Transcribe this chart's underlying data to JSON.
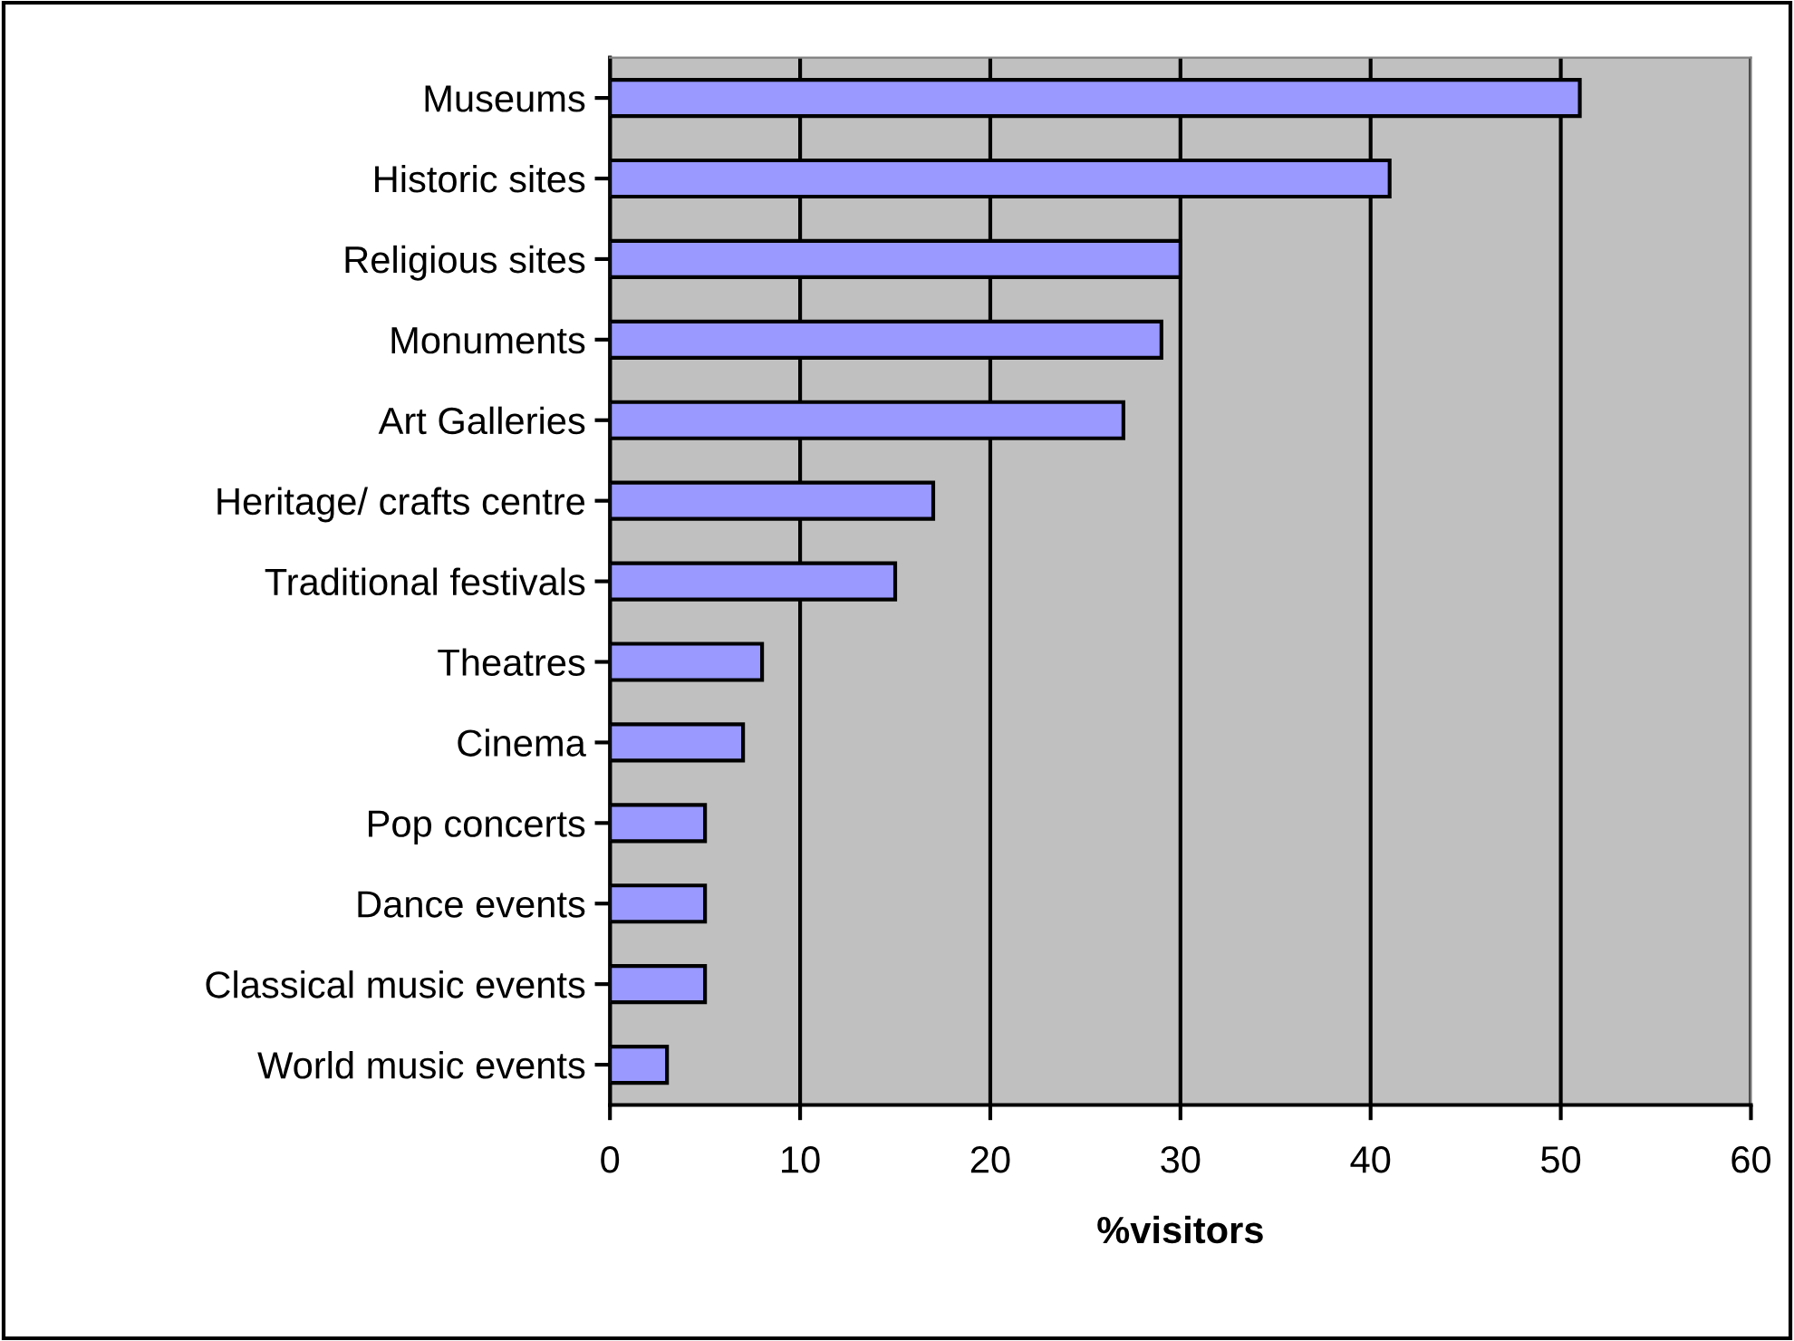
{
  "chart_data": {
    "type": "bar",
    "orientation": "horizontal",
    "xlabel": "%visitors",
    "categories": [
      "Museums",
      "Historic sites",
      "Religious sites",
      "Monuments",
      "Art Galleries",
      "Heritage/ crafts centre",
      "Traditional festivals",
      "Theatres",
      "Cinema",
      "Pop concerts",
      "Dance events",
      "Classical music events",
      "World music events"
    ],
    "values": [
      51,
      41,
      30,
      29,
      27,
      17,
      15,
      8,
      7,
      5,
      5,
      5,
      3
    ],
    "color": "#9999ff",
    "xlim": [
      0,
      60
    ],
    "xticks": [
      0,
      10,
      20,
      30,
      40,
      50,
      60
    ],
    "grid": "x"
  }
}
